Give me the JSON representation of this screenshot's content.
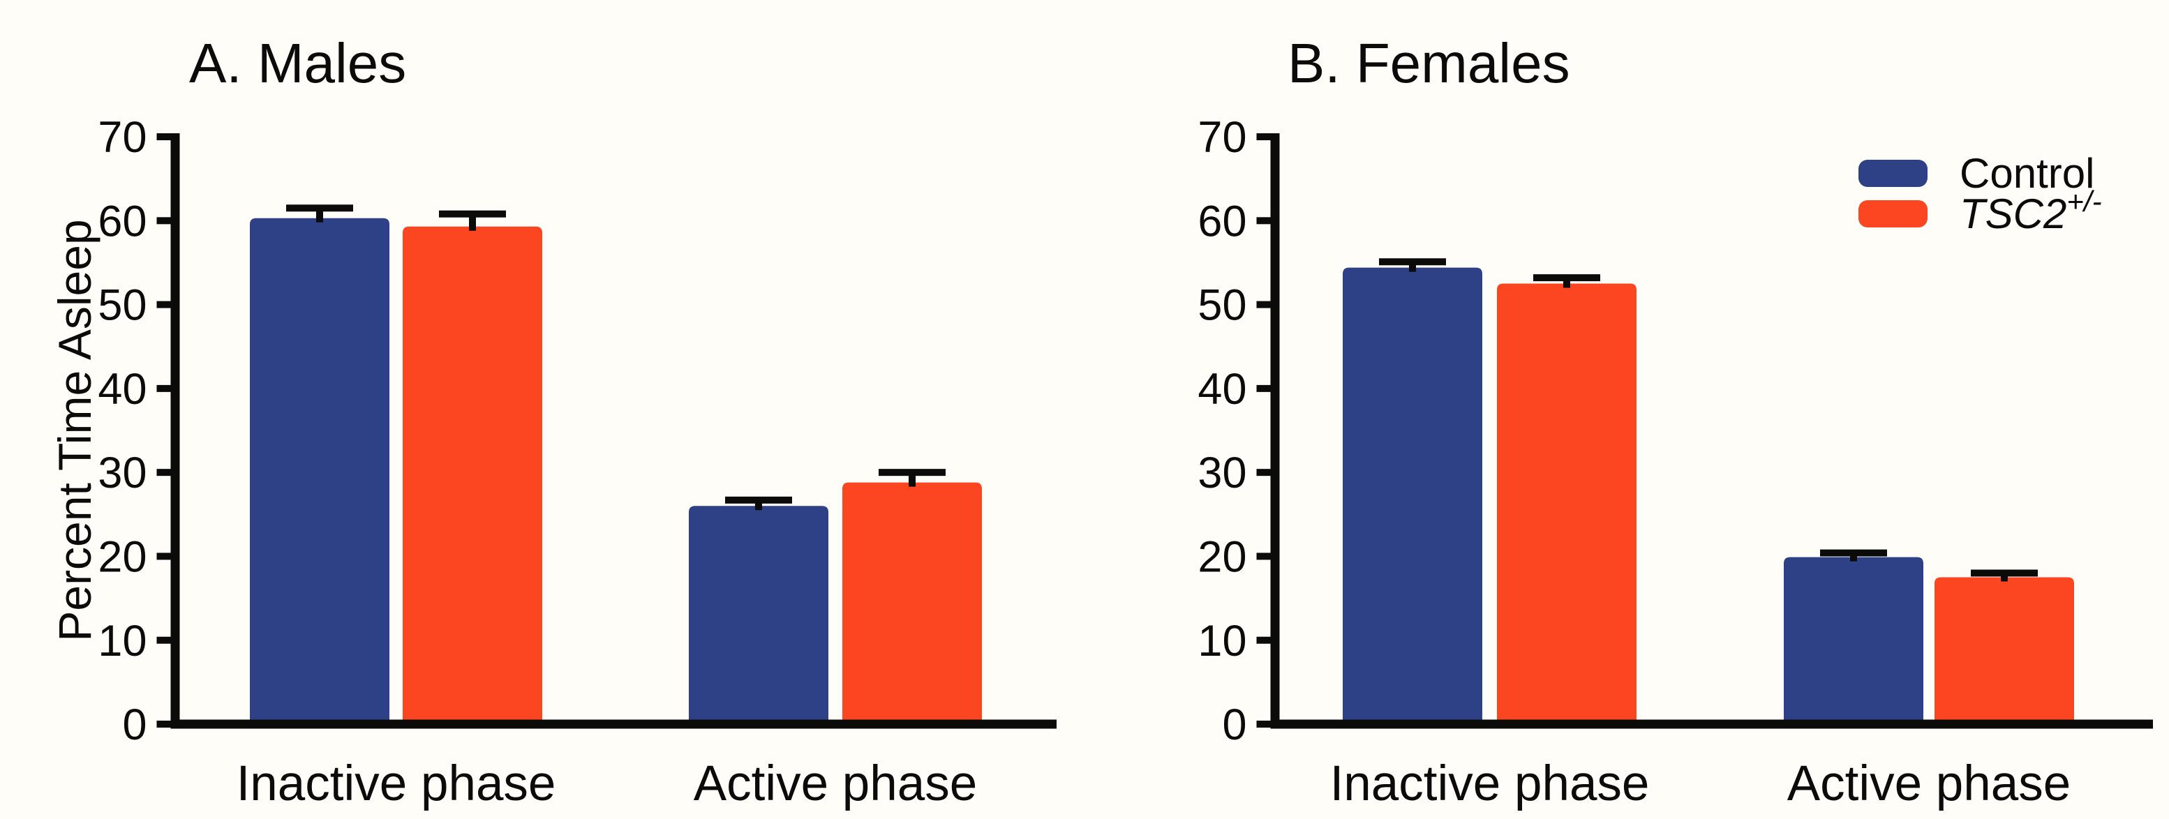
{
  "figure": {
    "background": "#FFFDF8",
    "axis_color": "#0B0B09",
    "error_bar_color": "#0B0B09"
  },
  "chart_data": [
    {
      "type": "bar",
      "panel_label": "A. Males",
      "categories": [
        "Inactive phase",
        "Active phase"
      ],
      "series": [
        {
          "name": "Control",
          "color": "#2E4086",
          "values": [
            60.3,
            26.0
          ],
          "sem": [
            1.2,
            0.7
          ]
        },
        {
          "name": "TSC2+/-",
          "color": "#FC4521",
          "values": [
            59.3,
            28.8
          ],
          "sem": [
            1.5,
            1.2
          ]
        }
      ],
      "ylabel": "Percent Time Asleep",
      "xlabel": "",
      "ylim": [
        0,
        70
      ],
      "yticks": [
        0,
        10,
        20,
        30,
        40,
        50,
        60,
        70
      ],
      "grid": false,
      "error_bars": "upper SEM only"
    },
    {
      "type": "bar",
      "panel_label": "B. Females",
      "categories": [
        "Inactive phase",
        "Active phase"
      ],
      "series": [
        {
          "name": "Control",
          "color": "#2E4086",
          "values": [
            54.4,
            19.9
          ],
          "sem": [
            0.7,
            0.5
          ]
        },
        {
          "name": "TSC2+/-",
          "color": "#FC4521",
          "values": [
            52.5,
            17.5
          ],
          "sem": [
            0.7,
            0.5
          ]
        }
      ],
      "ylabel": "",
      "xlabel": "",
      "ylim": [
        0,
        70
      ],
      "yticks": [
        0,
        10,
        20,
        30,
        40,
        50,
        60,
        70
      ],
      "grid": false,
      "error_bars": "upper SEM only",
      "legend": {
        "position": "top-right",
        "entries": [
          {
            "label": "Control",
            "superscript": "",
            "italic": false,
            "color": "#2E4086"
          },
          {
            "label": "TSC2",
            "superscript": "+/-",
            "italic": true,
            "color": "#FC4521"
          }
        ]
      }
    }
  ]
}
